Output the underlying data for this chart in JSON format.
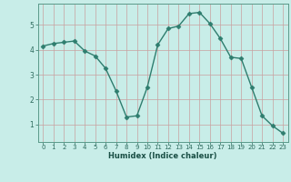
{
  "x": [
    0,
    1,
    2,
    3,
    4,
    5,
    6,
    7,
    8,
    9,
    10,
    11,
    12,
    13,
    14,
    15,
    16,
    17,
    18,
    19,
    20,
    21,
    22,
    23
  ],
  "y": [
    4.15,
    4.25,
    4.3,
    4.35,
    3.95,
    3.75,
    3.25,
    2.35,
    1.3,
    1.35,
    2.5,
    4.2,
    4.85,
    4.95,
    5.45,
    5.5,
    5.05,
    4.45,
    3.7,
    3.65,
    2.5,
    1.35,
    0.95,
    0.65
  ],
  "line_color": "#2e7d6e",
  "marker_color": "#2e7d6e",
  "bg_color": "#c8ede8",
  "grid_major_color": "#aad4cc",
  "grid_minor_color": "#c0e6e0",
  "axis_label": "Humidex (Indice chaleur)",
  "yticks": [
    1,
    2,
    3,
    4,
    5
  ],
  "xticks": [
    0,
    1,
    2,
    3,
    4,
    5,
    6,
    7,
    8,
    9,
    10,
    11,
    12,
    13,
    14,
    15,
    16,
    17,
    18,
    19,
    20,
    21,
    22,
    23
  ],
  "ylim": [
    0.3,
    5.85
  ],
  "xlim": [
    -0.5,
    23.5
  ],
  "tick_color": "#2e6b5e",
  "label_color": "#1a4f45",
  "spine_color": "#5a9a8a"
}
